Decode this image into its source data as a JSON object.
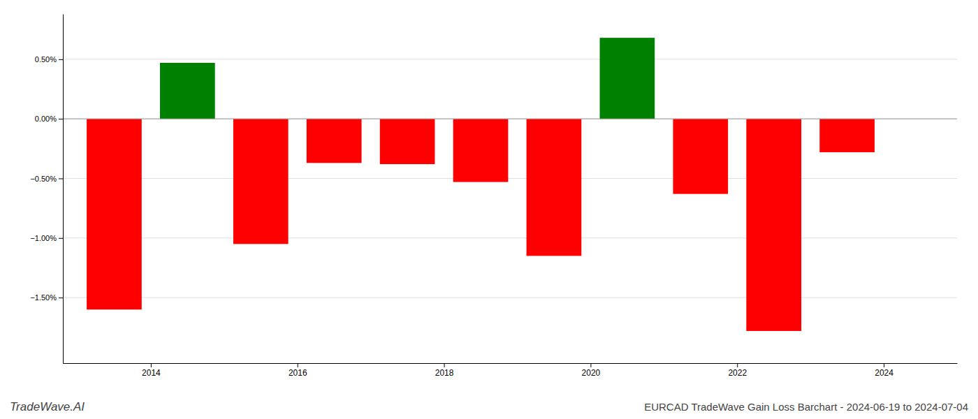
{
  "chart_data": {
    "type": "bar",
    "title": "EURCAD TradeWave Gain Loss Barchart - 2024-06-19 to 2024-07-04",
    "subtitle": "TradeWave.AI",
    "x": [
      2013.5,
      2014.5,
      2015.5,
      2016.5,
      2017.5,
      2018.5,
      2019.5,
      2020.5,
      2021.5,
      2022.5,
      2023.5
    ],
    "values": [
      -1.6,
      0.47,
      -1.05,
      -0.37,
      -0.38,
      -0.53,
      -1.15,
      0.68,
      -0.63,
      -1.78,
      -0.28
    ],
    "colors": [
      "#ff0000",
      "#008000",
      "#ff0000",
      "#ff0000",
      "#ff0000",
      "#ff0000",
      "#ff0000",
      "#008000",
      "#ff0000",
      "#ff0000",
      "#ff0000"
    ],
    "xlim": [
      2012.8,
      2025.0
    ],
    "xticks": [
      2014,
      2016,
      2018,
      2020,
      2022,
      2024
    ],
    "ylim": [
      -2.05,
      0.88
    ],
    "yticks": [
      {
        "value": -1.5,
        "label": "−1.50%"
      },
      {
        "value": -1.0,
        "label": "−1.00%"
      },
      {
        "value": -0.5,
        "label": "−0.50%"
      },
      {
        "value": 0.0,
        "label": "0.00%"
      },
      {
        "value": 0.5,
        "label": "0.50%"
      }
    ],
    "grid": true
  }
}
